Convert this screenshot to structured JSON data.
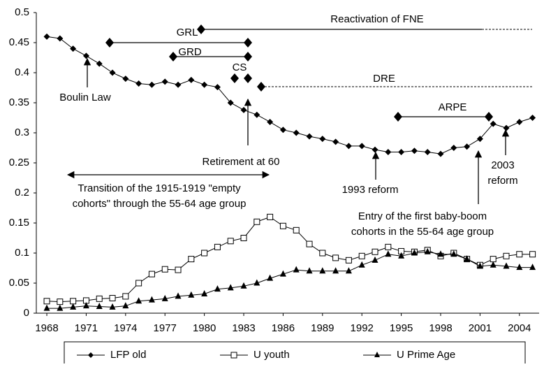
{
  "chart_data": {
    "type": "line",
    "x": [
      1968,
      1969,
      1970,
      1971,
      1972,
      1973,
      1974,
      1975,
      1976,
      1977,
      1978,
      1979,
      1980,
      1981,
      1982,
      1983,
      1984,
      1985,
      1986,
      1987,
      1988,
      1989,
      1990,
      1991,
      1992,
      1993,
      1994,
      1995,
      1996,
      1997,
      1998,
      1999,
      2000,
      2001,
      2002,
      2003,
      2004,
      2005
    ],
    "series": [
      {
        "name": "LFP old",
        "color": "#000000",
        "marker": "diamond",
        "values": [
          0.46,
          0.457,
          0.44,
          0.428,
          0.415,
          0.4,
          0.39,
          0.382,
          0.38,
          0.385,
          0.38,
          0.388,
          0.38,
          0.376,
          0.35,
          0.338,
          0.33,
          0.318,
          0.305,
          0.3,
          0.294,
          0.29,
          0.285,
          0.278,
          0.278,
          0.272,
          0.268,
          0.268,
          0.27,
          0.268,
          0.265,
          0.275,
          0.277,
          0.29,
          0.315,
          0.308,
          0.318,
          0.325
        ]
      },
      {
        "name": "U youth",
        "color": "#000000",
        "marker": "square",
        "values": [
          0.02,
          0.019,
          0.02,
          0.021,
          0.024,
          0.025,
          0.028,
          0.05,
          0.065,
          0.073,
          0.072,
          0.09,
          0.1,
          0.11,
          0.12,
          0.125,
          0.152,
          0.16,
          0.145,
          0.138,
          0.115,
          0.1,
          0.092,
          0.088,
          0.095,
          0.102,
          0.11,
          0.103,
          0.102,
          0.105,
          0.095,
          0.1,
          0.09,
          0.08,
          0.09,
          0.095,
          0.098,
          0.098
        ]
      },
      {
        "name": "U Prime Age",
        "color": "#000000",
        "marker": "triangle",
        "values": [
          0.008,
          0.008,
          0.01,
          0.012,
          0.011,
          0.01,
          0.012,
          0.02,
          0.022,
          0.024,
          0.028,
          0.03,
          0.032,
          0.04,
          0.042,
          0.045,
          0.05,
          0.058,
          0.065,
          0.072,
          0.07,
          0.07,
          0.07,
          0.07,
          0.08,
          0.088,
          0.098,
          0.095,
          0.1,
          0.102,
          0.098,
          0.098,
          0.09,
          0.078,
          0.08,
          0.078,
          0.076,
          0.076
        ]
      }
    ],
    "xlim": [
      1967.2,
      2005.5
    ],
    "xticks": [
      1968,
      1971,
      1974,
      1977,
      1980,
      1983,
      1986,
      1989,
      1992,
      1995,
      1998,
      2001,
      2004
    ],
    "ylim": [
      0,
      0.5
    ],
    "yticks": [
      0,
      0.05,
      0.1,
      0.15,
      0.2,
      0.25,
      0.3,
      0.35,
      0.4,
      0.45,
      0.5
    ],
    "grid": false,
    "annotations": [
      "Reactivation of FNE",
      "GRL",
      "GRD",
      "CS",
      "DRE",
      "ARPE",
      "Boulin Law",
      "Retirement at 60",
      "Transition of the 1915-1919 \"empty",
      "cohorts\" through the 55-64 age group",
      "1993 reform",
      "2003",
      "reform",
      "Entry of the first baby-boom",
      "cohorts in the 55-64 age group"
    ]
  }
}
